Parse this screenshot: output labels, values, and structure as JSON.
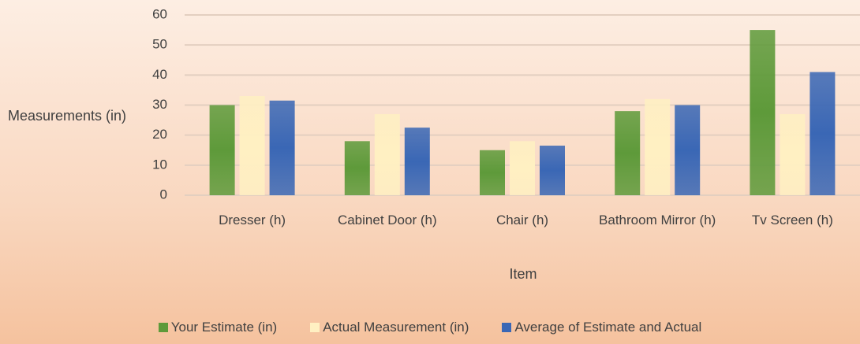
{
  "chart_data": {
    "type": "bar",
    "categories": [
      "Dresser (h)",
      "Cabinet Door (h)",
      "Chair (h)",
      "Bathroom Mirror (h)",
      "Tv Screen (h)"
    ],
    "series": [
      {
        "name": "Your Estimate (in)",
        "color": "#5e9a3a",
        "values": [
          30,
          18,
          15,
          28,
          55
        ]
      },
      {
        "name": "Actual Measurement (in)",
        "color": "#fff0c2",
        "values": [
          33,
          27,
          18,
          32,
          27
        ]
      },
      {
        "name": "Average of Estimate and Actual",
        "color": "#3a67b5",
        "values": [
          31.5,
          22.5,
          16.5,
          30,
          41
        ]
      }
    ],
    "y_label": "Measurements (in)",
    "x_label": "Item",
    "ylim": [
      0,
      60
    ],
    "yticks": [
      0,
      10,
      20,
      30,
      40,
      50,
      60
    ],
    "grid": true,
    "legend": "bottom"
  }
}
